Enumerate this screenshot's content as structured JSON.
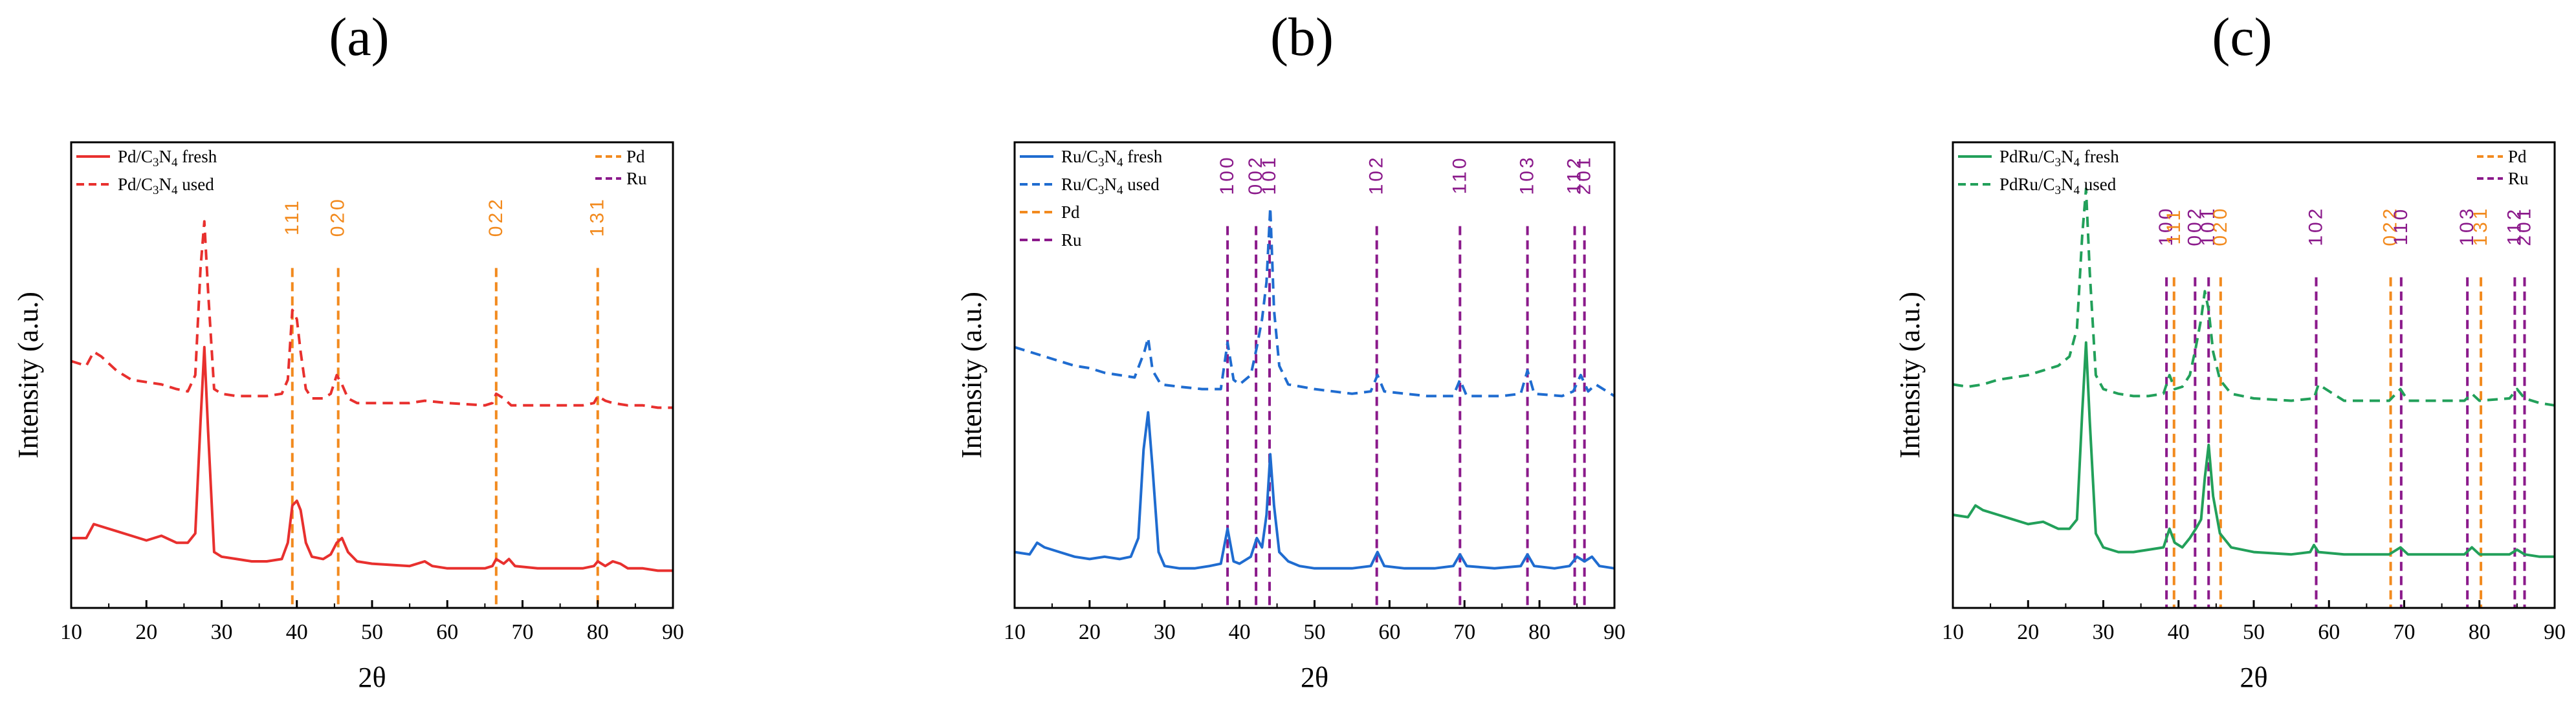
{
  "colors": {
    "pd_ref": "#F28A1E",
    "ru_ref": "#8B1A8B",
    "axis": "#000000"
  },
  "chart_data": [
    {
      "type": "line",
      "panel_label": "(a)",
      "xlabel": "2θ",
      "ylabel": "Intensity (a.u.)",
      "xlim": [
        10,
        90
      ],
      "ylim": [
        0,
        100
      ],
      "xticks": [
        "10",
        "20",
        "30",
        "40",
        "50",
        "60",
        "70",
        "80",
        "90"
      ],
      "legend_left": [
        {
          "main": "Pd/C",
          "sub1": "3",
          "mid": "N",
          "sub2": "4",
          "end": " fresh",
          "color": "#E8302E",
          "style": "solid"
        },
        {
          "main": "Pd/C",
          "sub1": "3",
          "mid": "N",
          "sub2": "4",
          "end": " used",
          "color": "#E8302E",
          "style": "dashed"
        }
      ],
      "legend_right": [
        {
          "label": "Pd",
          "color": "#F28A1E"
        },
        {
          "label": "Ru",
          "color": "#8B1A8B"
        }
      ],
      "series": [
        {
          "name": "Pd/C3N4 fresh",
          "color": "#E8302E",
          "style": "solid",
          "x": [
            10,
            12,
            13,
            14,
            16,
            18,
            20,
            22,
            24,
            25.5,
            26.5,
            27.2,
            27.7,
            28.2,
            29,
            30,
            32,
            34,
            36,
            38,
            38.8,
            39.4,
            40,
            40.5,
            41.2,
            42,
            43.5,
            44.5,
            45.3,
            46,
            46.8,
            48,
            50,
            55,
            57,
            58,
            60,
            63,
            65,
            66,
            66.5,
            67.5,
            68.2,
            69,
            72,
            75,
            78,
            79.5,
            80,
            81,
            82,
            83,
            84,
            86,
            88,
            90
          ],
          "y": [
            15,
            15,
            18,
            17.5,
            16.5,
            15.5,
            14.5,
            15.5,
            14,
            14,
            16,
            40,
            56,
            38,
            12,
            11,
            10.5,
            10,
            10,
            10.5,
            14,
            22,
            23,
            21,
            14,
            11,
            10.5,
            11.5,
            14,
            15,
            12,
            10,
            9.5,
            9,
            10,
            9,
            8.5,
            8.5,
            8.5,
            9,
            10.5,
            9.5,
            10.5,
            9,
            8.5,
            8.5,
            8.5,
            9,
            10,
            9,
            10,
            9.5,
            8.5,
            8.5,
            8,
            8
          ]
        },
        {
          "name": "Pd/C3N4 used",
          "color": "#E8302E",
          "style": "dashed",
          "x": [
            10,
            12,
            13,
            14,
            16,
            18,
            20,
            22,
            24,
            25.5,
            26.5,
            27.2,
            27.7,
            28.2,
            29,
            30,
            32,
            34,
            36,
            38,
            38.8,
            39.4,
            40,
            40.5,
            41.2,
            42,
            43.5,
            44.5,
            45.3,
            46,
            46.8,
            48,
            50,
            55,
            57,
            60,
            65,
            66,
            66.5,
            67.5,
            68.5,
            70,
            75,
            78,
            79.5,
            80,
            81,
            82,
            84,
            86,
            88,
            90
          ],
          "y": [
            53,
            52,
            55,
            54,
            51,
            49,
            48.5,
            48,
            47,
            46.5,
            50,
            73,
            83,
            68,
            47,
            46,
            45.5,
            45.5,
            45.5,
            46,
            49,
            64,
            62,
            55,
            47,
            45,
            45,
            46,
            50,
            48,
            45,
            44,
            44,
            44,
            44.5,
            44,
            43.5,
            44,
            46,
            45,
            43.5,
            43.5,
            43.5,
            43.5,
            44,
            45.5,
            44.5,
            44,
            43.5,
            43.5,
            43,
            43
          ]
        }
      ],
      "ref_lines": [
        {
          "x": 39.4,
          "label": "111",
          "phase": "Pd",
          "label_top": 84
        },
        {
          "x": 45.5,
          "label": "020",
          "phase": "Pd",
          "label_top": 84
        },
        {
          "x": 66.5,
          "label": "022",
          "phase": "Pd",
          "label_top": 84
        },
        {
          "x": 80,
          "label": "131",
          "phase": "Pd",
          "label_top": 84
        }
      ]
    },
    {
      "type": "line",
      "panel_label": "(b)",
      "xlabel": "2θ",
      "ylabel": "Intensity (a.u.)",
      "xlim": [
        10,
        90
      ],
      "ylim": [
        0,
        100
      ],
      "xticks": [
        "10",
        "20",
        "30",
        "40",
        "50",
        "60",
        "70",
        "80",
        "90"
      ],
      "legend_left": [
        {
          "main": "Ru/C",
          "sub1": "3",
          "mid": "N",
          "sub2": "4",
          "end": " fresh",
          "color": "#1F6CD0",
          "style": "solid"
        },
        {
          "main": "Ru/C",
          "sub1": "3",
          "mid": "N",
          "sub2": "4",
          "end": " used",
          "color": "#1F6CD0",
          "style": "dashed"
        },
        {
          "main": "Pd",
          "sub1": "",
          "mid": "",
          "sub2": "",
          "end": "",
          "color": "#F28A1E",
          "style": "dashed"
        },
        {
          "main": "Ru",
          "sub1": "",
          "mid": "",
          "sub2": "",
          "end": "",
          "color": "#8B1A8B",
          "style": "dashed"
        }
      ],
      "legend_right": [],
      "series": [
        {
          "name": "Ru/C3N4 fresh",
          "color": "#1F6CD0",
          "style": "solid",
          "x": [
            10,
            12,
            13,
            14,
            16,
            18,
            20,
            22,
            24,
            25.5,
            26.5,
            27.2,
            27.8,
            28.4,
            29.2,
            30,
            32,
            34,
            36,
            37.5,
            38.4,
            39.2,
            40,
            41.5,
            42.3,
            43,
            43.6,
            44.1,
            44.6,
            45.3,
            46.5,
            48,
            50,
            55,
            57.5,
            58.4,
            59.3,
            62,
            66,
            68.5,
            69.4,
            70.3,
            74,
            77.5,
            78.4,
            79.3,
            82,
            84,
            85,
            86,
            87,
            88,
            90
          ],
          "y": [
            12,
            11.5,
            14,
            13,
            12,
            11,
            10.5,
            11,
            10.5,
            11,
            15,
            34,
            42,
            30,
            12,
            9,
            8.5,
            8.5,
            9,
            9.5,
            17,
            10,
            9.5,
            11,
            15,
            13,
            20,
            33,
            22,
            12,
            10,
            9,
            8.5,
            8.5,
            9,
            12,
            9,
            8.5,
            8.5,
            9,
            11.5,
            9,
            8.5,
            9,
            11.5,
            9,
            8.5,
            9,
            11,
            10,
            11,
            9,
            8.5
          ]
        },
        {
          "name": "Ru/C3N4 used",
          "color": "#1F6CD0",
          "style": "dashed",
          "x": [
            10,
            12,
            14,
            16,
            18,
            20,
            22,
            24,
            26,
            27.3,
            27.8,
            28.4,
            29.5,
            32,
            35,
            37.5,
            38.4,
            39.2,
            40,
            41.5,
            42.3,
            43,
            43.6,
            44.1,
            44.6,
            45.3,
            46.5,
            50,
            55,
            57.5,
            58.4,
            59.3,
            65,
            68.5,
            69.4,
            70.3,
            75,
            77.5,
            78.4,
            79.3,
            83,
            84.5,
            85.5,
            86.5,
            87.5,
            90
          ],
          "y": [
            56,
            55,
            54,
            53,
            52,
            51.5,
            50.5,
            50,
            49.5,
            55,
            58,
            51,
            48,
            47.5,
            47,
            47,
            57,
            49,
            48,
            50,
            56,
            62,
            70,
            86,
            64,
            52,
            48,
            47,
            46,
            46.5,
            50,
            46.5,
            45.5,
            45.5,
            49,
            45.5,
            45.5,
            46,
            51,
            46,
            45.5,
            46.5,
            50,
            46.5,
            48,
            45.5
          ]
        }
      ],
      "ref_lines": [
        {
          "x": 38.4,
          "label": "100",
          "phase": "Ru",
          "label_top": 93
        },
        {
          "x": 42.2,
          "label": "002",
          "phase": "Ru",
          "label_top": 93
        },
        {
          "x": 44.0,
          "label": "101",
          "phase": "Ru",
          "label_top": 93
        },
        {
          "x": 58.3,
          "label": "102",
          "phase": "Ru",
          "label_top": 93
        },
        {
          "x": 69.4,
          "label": "110",
          "phase": "Ru",
          "label_top": 93
        },
        {
          "x": 78.4,
          "label": "103",
          "phase": "Ru",
          "label_top": 93
        },
        {
          "x": 84.7,
          "label": "112",
          "phase": "Ru",
          "label_top": 93
        },
        {
          "x": 86.0,
          "label": "201",
          "phase": "Ru",
          "label_top": 93
        }
      ]
    },
    {
      "type": "line",
      "panel_label": "(c)",
      "xlabel": "2θ",
      "ylabel": "Intensity (a.u.)",
      "xlim": [
        10,
        90
      ],
      "ylim": [
        0,
        100
      ],
      "xticks": [
        "10",
        "20",
        "30",
        "40",
        "50",
        "60",
        "70",
        "80",
        "90"
      ],
      "legend_left": [
        {
          "main": "PdRu/C",
          "sub1": "3",
          "mid": "N",
          "sub2": "4",
          "end": " fresh",
          "color": "#22A05A",
          "style": "solid"
        },
        {
          "main": "PdRu/C",
          "sub1": "3",
          "mid": "N",
          "sub2": "4",
          "end": " used",
          "color": "#22A05A",
          "style": "dashed"
        }
      ],
      "legend_right": [
        {
          "label": "Pd",
          "color": "#F28A1E"
        },
        {
          "label": "Ru",
          "color": "#8B1A8B"
        }
      ],
      "series": [
        {
          "name": "PdRu/C3N4 fresh",
          "color": "#22A05A",
          "style": "solid",
          "x": [
            10,
            12,
            13,
            14,
            16,
            18,
            20,
            22,
            24,
            25.5,
            26.5,
            27.2,
            27.7,
            28.2,
            29,
            30,
            32,
            34,
            36,
            38,
            38.8,
            39.5,
            40.5,
            41.5,
            42.3,
            43,
            43.5,
            44,
            44.6,
            45.5,
            47,
            50,
            55,
            57.5,
            58,
            58.6,
            62,
            68,
            69.5,
            70.5,
            75,
            78,
            79,
            80,
            84,
            85,
            86,
            88,
            90
          ],
          "y": [
            20,
            19.5,
            22,
            21,
            20,
            19,
            18,
            18.5,
            17,
            17,
            19,
            42,
            57,
            40,
            16,
            13,
            12,
            12,
            12.5,
            13,
            17,
            14,
            13,
            15,
            17,
            19,
            28,
            35,
            24,
            16,
            13,
            12,
            11.5,
            12,
            13.5,
            12,
            11.5,
            11.5,
            13,
            11.5,
            11.5,
            11.5,
            13,
            11.5,
            11.5,
            12.5,
            11.5,
            11,
            11
          ]
        },
        {
          "name": "PdRu/C3N4 used",
          "color": "#22A05A",
          "style": "dashed",
          "x": [
            10,
            12,
            14,
            16,
            18,
            20,
            22,
            24,
            25.5,
            26.5,
            27.2,
            27.7,
            28.2,
            29,
            30,
            32,
            34,
            36,
            38,
            38.8,
            39.5,
            40.5,
            41.5,
            42.3,
            43,
            43.5,
            44,
            44.6,
            45.5,
            47,
            50,
            55,
            58,
            58.6,
            62,
            68,
            69.5,
            70.5,
            75,
            78,
            79,
            80,
            84,
            85,
            86,
            88,
            90
          ],
          "y": [
            48,
            47.5,
            48,
            49,
            49.5,
            50,
            51,
            52,
            54,
            60,
            80,
            90,
            72,
            50,
            47,
            46,
            45.5,
            45.5,
            46,
            50,
            47,
            47.5,
            50,
            56,
            62,
            68,
            64,
            55,
            49,
            46,
            45,
            44.5,
            45,
            48,
            44.5,
            44.5,
            47,
            44.5,
            44.5,
            44.5,
            46,
            44.5,
            45,
            47,
            45,
            44,
            43.5
          ]
        }
      ],
      "ref_lines": [
        {
          "x": 38.4,
          "label": "100",
          "phase": "Ru",
          "label_top": 82
        },
        {
          "x": 39.4,
          "label": "111",
          "phase": "Pd",
          "label_top": 82
        },
        {
          "x": 42.2,
          "label": "002",
          "phase": "Ru",
          "label_top": 82
        },
        {
          "x": 44.0,
          "label": "101",
          "phase": "Ru",
          "label_top": 82
        },
        {
          "x": 45.6,
          "label": "020",
          "phase": "Pd",
          "label_top": 82
        },
        {
          "x": 58.3,
          "label": "102",
          "phase": "Ru",
          "label_top": 82
        },
        {
          "x": 68.2,
          "label": "022",
          "phase": "Pd",
          "label_top": 82
        },
        {
          "x": 69.6,
          "label": "110",
          "phase": "Ru",
          "label_top": 82
        },
        {
          "x": 78.4,
          "label": "103",
          "phase": "Ru",
          "label_top": 82
        },
        {
          "x": 80.2,
          "label": "131",
          "phase": "Pd",
          "label_top": 82
        },
        {
          "x": 84.7,
          "label": "112",
          "phase": "Ru",
          "label_top": 82
        },
        {
          "x": 86.0,
          "label": "201",
          "phase": "Ru",
          "label_top": 82
        }
      ]
    }
  ]
}
